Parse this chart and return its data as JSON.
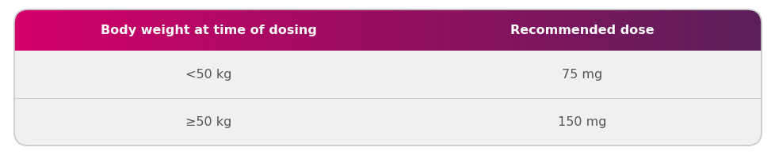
{
  "header_left": "Body weight at time of dosing",
  "header_right": "Recommended dose",
  "rows": [
    [
      "<50 kg",
      "75 mg"
    ],
    [
      "≥50 kg",
      "150 mg"
    ]
  ],
  "header_grad_left": "#D4006A",
  "header_grad_right": "#5A1F5A",
  "row_bg_light": "#F0F0F0",
  "row_bg_white": "#FFFFFF",
  "outer_bg": "#FFFFFF",
  "header_text_color": "#FFFFFF",
  "row_text_color": "#555555",
  "divider_color": "#D0D0D0",
  "header_fontsize": 11.5,
  "row_fontsize": 11.5,
  "col_split": 0.52,
  "border_color": "#CCCCCC",
  "border_lw": 1.2
}
